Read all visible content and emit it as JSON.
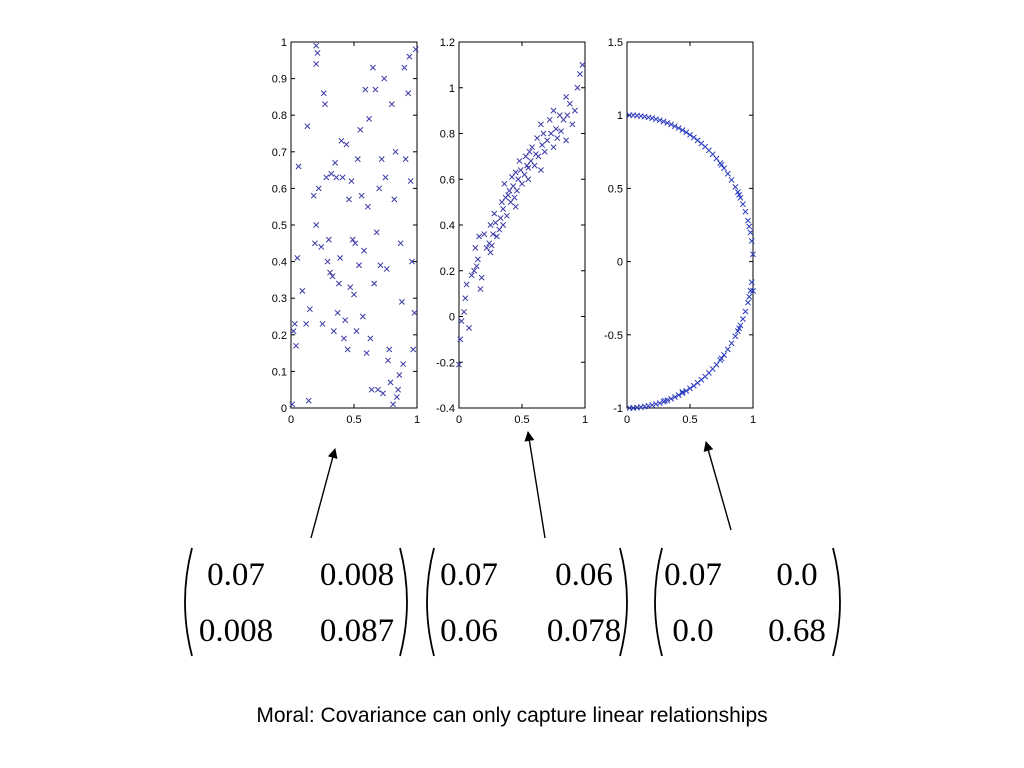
{
  "chart_data": [
    {
      "type": "scatter",
      "marker": "x",
      "color": "#3a3aa8",
      "xlim": [
        0,
        1
      ],
      "ylim": [
        0,
        1
      ],
      "xticks": [
        "0",
        "0.5",
        "1"
      ],
      "yticks": [
        "0",
        "0.1",
        "0.2",
        "0.3",
        "0.4",
        "0.5",
        "0.6",
        "0.7",
        "0.8",
        "0.9",
        "1"
      ],
      "points": [
        [
          0.01,
          0.01
        ],
        [
          0.02,
          0.21
        ],
        [
          0.03,
          0.23
        ],
        [
          0.04,
          0.17
        ],
        [
          0.05,
          0.41
        ],
        [
          0.06,
          0.66
        ],
        [
          0.12,
          0.23
        ],
        [
          0.13,
          0.77
        ],
        [
          0.15,
          0.27
        ],
        [
          0.18,
          0.58
        ],
        [
          0.19,
          0.45
        ],
        [
          0.2,
          0.5
        ],
        [
          0.2,
          0.94
        ],
        [
          0.2,
          0.99
        ],
        [
          0.21,
          0.97
        ],
        [
          0.22,
          0.6
        ],
        [
          0.24,
          0.44
        ],
        [
          0.25,
          0.23
        ],
        [
          0.26,
          0.86
        ],
        [
          0.27,
          0.83
        ],
        [
          0.28,
          0.63
        ],
        [
          0.29,
          0.4
        ],
        [
          0.3,
          0.46
        ],
        [
          0.31,
          0.37
        ],
        [
          0.32,
          0.64
        ],
        [
          0.33,
          0.36
        ],
        [
          0.34,
          0.21
        ],
        [
          0.35,
          0.67
        ],
        [
          0.36,
          0.63
        ],
        [
          0.37,
          0.26
        ],
        [
          0.38,
          0.34
        ],
        [
          0.39,
          0.41
        ],
        [
          0.4,
          0.73
        ],
        [
          0.41,
          0.63
        ],
        [
          0.42,
          0.19
        ],
        [
          0.43,
          0.24
        ],
        [
          0.44,
          0.72
        ],
        [
          0.45,
          0.16
        ],
        [
          0.46,
          0.57
        ],
        [
          0.47,
          0.33
        ],
        [
          0.48,
          0.62
        ],
        [
          0.49,
          0.46
        ],
        [
          0.5,
          0.31
        ],
        [
          0.51,
          0.45
        ],
        [
          0.52,
          0.21
        ],
        [
          0.53,
          0.68
        ],
        [
          0.54,
          0.39
        ],
        [
          0.55,
          0.76
        ],
        [
          0.56,
          0.58
        ],
        [
          0.57,
          0.25
        ],
        [
          0.58,
          0.43
        ],
        [
          0.59,
          0.87
        ],
        [
          0.6,
          0.15
        ],
        [
          0.61,
          0.55
        ],
        [
          0.62,
          0.79
        ],
        [
          0.63,
          0.19
        ],
        [
          0.64,
          0.05
        ],
        [
          0.65,
          0.93
        ],
        [
          0.66,
          0.34
        ],
        [
          0.67,
          0.87
        ],
        [
          0.68,
          0.48
        ],
        [
          0.69,
          0.05
        ],
        [
          0.7,
          0.6
        ],
        [
          0.71,
          0.39
        ],
        [
          0.72,
          0.68
        ],
        [
          0.73,
          0.04
        ],
        [
          0.74,
          0.9
        ],
        [
          0.75,
          0.63
        ],
        [
          0.76,
          0.38
        ],
        [
          0.77,
          0.13
        ],
        [
          0.78,
          0.16
        ],
        [
          0.79,
          0.07
        ],
        [
          0.8,
          0.83
        ],
        [
          0.81,
          0.01
        ],
        [
          0.82,
          0.57
        ],
        [
          0.83,
          0.7
        ],
        [
          0.84,
          0.03
        ],
        [
          0.85,
          0.05
        ],
        [
          0.86,
          0.09
        ],
        [
          0.87,
          0.45
        ],
        [
          0.88,
          0.29
        ],
        [
          0.89,
          0.12
        ],
        [
          0.9,
          0.93
        ],
        [
          0.91,
          0.68
        ],
        [
          0.93,
          0.86
        ],
        [
          0.94,
          0.96
        ],
        [
          0.95,
          0.62
        ],
        [
          0.96,
          0.4
        ],
        [
          0.97,
          0.16
        ],
        [
          0.98,
          0.26
        ],
        [
          0.99,
          0.98
        ],
        [
          0.14,
          0.02
        ],
        [
          0.09,
          0.32
        ]
      ]
    },
    {
      "type": "scatter",
      "marker": "x",
      "color": "#3a3aa8",
      "xlim": [
        0,
        1
      ],
      "ylim": [
        -0.4,
        1.2
      ],
      "xticks": [
        "0",
        "0.5",
        "1"
      ],
      "yticks": [
        "-0.4",
        "-0.2",
        "0",
        "0.2",
        "0.4",
        "0.6",
        "0.8",
        "1",
        "1.2"
      ],
      "points": [
        [
          0.0,
          -0.21
        ],
        [
          0.01,
          -0.1
        ],
        [
          0.02,
          -0.02
        ],
        [
          0.04,
          0.02
        ],
        [
          0.05,
          0.08
        ],
        [
          0.06,
          0.14
        ],
        [
          0.08,
          -0.05
        ],
        [
          0.1,
          0.18
        ],
        [
          0.12,
          0.2
        ],
        [
          0.13,
          0.3
        ],
        [
          0.14,
          0.22
        ],
        [
          0.15,
          0.25
        ],
        [
          0.16,
          0.35
        ],
        [
          0.17,
          0.12
        ],
        [
          0.18,
          0.17
        ],
        [
          0.2,
          0.36
        ],
        [
          0.22,
          0.3
        ],
        [
          0.24,
          0.32
        ],
        [
          0.25,
          0.4
        ],
        [
          0.26,
          0.31
        ],
        [
          0.27,
          0.36
        ],
        [
          0.28,
          0.45
        ],
        [
          0.29,
          0.41
        ],
        [
          0.3,
          0.35
        ],
        [
          0.32,
          0.38
        ],
        [
          0.33,
          0.43
        ],
        [
          0.34,
          0.5
        ],
        [
          0.35,
          0.47
        ],
        [
          0.36,
          0.58
        ],
        [
          0.37,
          0.52
        ],
        [
          0.38,
          0.44
        ],
        [
          0.39,
          0.53
        ],
        [
          0.4,
          0.55
        ],
        [
          0.41,
          0.5
        ],
        [
          0.42,
          0.61
        ],
        [
          0.43,
          0.57
        ],
        [
          0.44,
          0.52
        ],
        [
          0.45,
          0.63
        ],
        [
          0.46,
          0.55
        ],
        [
          0.47,
          0.6
        ],
        [
          0.48,
          0.68
        ],
        [
          0.49,
          0.64
        ],
        [
          0.5,
          0.58
        ],
        [
          0.52,
          0.62
        ],
        [
          0.53,
          0.7
        ],
        [
          0.54,
          0.66
        ],
        [
          0.55,
          0.6
        ],
        [
          0.56,
          0.72
        ],
        [
          0.57,
          0.68
        ],
        [
          0.58,
          0.74
        ],
        [
          0.6,
          0.66
        ],
        [
          0.61,
          0.71
        ],
        [
          0.62,
          0.78
        ],
        [
          0.63,
          0.7
        ],
        [
          0.65,
          0.84
        ],
        [
          0.66,
          0.75
        ],
        [
          0.67,
          0.8
        ],
        [
          0.68,
          0.72
        ],
        [
          0.7,
          0.77
        ],
        [
          0.72,
          0.86
        ],
        [
          0.73,
          0.8
        ],
        [
          0.75,
          0.74
        ],
        [
          0.77,
          0.82
        ],
        [
          0.78,
          0.78
        ],
        [
          0.8,
          0.88
        ],
        [
          0.81,
          0.81
        ],
        [
          0.83,
          0.86
        ],
        [
          0.85,
          0.96
        ],
        [
          0.86,
          0.88
        ],
        [
          0.88,
          0.93
        ],
        [
          0.9,
          0.84
        ],
        [
          0.92,
          0.9
        ],
        [
          0.94,
          1.0
        ],
        [
          0.96,
          1.06
        ],
        [
          0.98,
          1.1
        ],
        [
          0.45,
          0.48
        ],
        [
          0.35,
          0.4
        ],
        [
          0.25,
          0.28
        ],
        [
          0.55,
          0.65
        ],
        [
          0.65,
          0.64
        ],
        [
          0.75,
          0.9
        ],
        [
          0.85,
          0.77
        ]
      ]
    },
    {
      "type": "scatter",
      "marker": "x",
      "color": "#2a3ac0",
      "xlim": [
        0,
        1
      ],
      "ylim": [
        -1,
        1.5
      ],
      "xticks": [
        "0",
        "0.5",
        "1"
      ],
      "yticks": [
        "-1",
        "-0.5",
        "0",
        "0.5",
        "1",
        "1.5"
      ],
      "points": [
        [
          0.02,
          1.0
        ],
        [
          0.05,
          1.0
        ],
        [
          0.08,
          0.997
        ],
        [
          0.11,
          0.994
        ],
        [
          0.14,
          0.99
        ],
        [
          0.17,
          0.985
        ],
        [
          0.2,
          0.98
        ],
        [
          0.23,
          0.973
        ],
        [
          0.26,
          0.966
        ],
        [
          0.29,
          0.957
        ],
        [
          0.32,
          0.947
        ],
        [
          0.35,
          0.937
        ],
        [
          0.38,
          0.925
        ],
        [
          0.41,
          0.912
        ],
        [
          0.44,
          0.898
        ],
        [
          0.47,
          0.883
        ],
        [
          0.5,
          0.866
        ],
        [
          0.53,
          0.848
        ],
        [
          0.56,
          0.828
        ],
        [
          0.59,
          0.807
        ],
        [
          0.62,
          0.785
        ],
        [
          0.65,
          0.76
        ],
        [
          0.68,
          0.733
        ],
        [
          0.71,
          0.704
        ],
        [
          0.74,
          0.673
        ],
        [
          0.77,
          0.638
        ],
        [
          0.8,
          0.6
        ],
        [
          0.83,
          0.558
        ],
        [
          0.86,
          0.51
        ],
        [
          0.88,
          0.475
        ],
        [
          0.9,
          0.436
        ],
        [
          0.92,
          0.392
        ],
        [
          0.94,
          0.341
        ],
        [
          0.96,
          0.28
        ],
        [
          0.98,
          0.199
        ],
        [
          0.99,
          0.141
        ],
        [
          1.0,
          0.05
        ],
        [
          0.97,
          0.24
        ],
        [
          0.89,
          0.456
        ],
        [
          0.75,
          0.661
        ],
        [
          0.02,
          -1.0
        ],
        [
          0.05,
          -1.0
        ],
        [
          0.08,
          -0.997
        ],
        [
          0.11,
          -0.994
        ],
        [
          0.14,
          -0.99
        ],
        [
          0.17,
          -0.985
        ],
        [
          0.2,
          -0.98
        ],
        [
          0.23,
          -0.973
        ],
        [
          0.26,
          -0.966
        ],
        [
          0.29,
          -0.957
        ],
        [
          0.32,
          -0.947
        ],
        [
          0.35,
          -0.937
        ],
        [
          0.38,
          -0.925
        ],
        [
          0.41,
          -0.912
        ],
        [
          0.44,
          -0.898
        ],
        [
          0.47,
          -0.883
        ],
        [
          0.5,
          -0.866
        ],
        [
          0.53,
          -0.848
        ],
        [
          0.56,
          -0.828
        ],
        [
          0.59,
          -0.807
        ],
        [
          0.62,
          -0.785
        ],
        [
          0.65,
          -0.76
        ],
        [
          0.68,
          -0.733
        ],
        [
          0.71,
          -0.704
        ],
        [
          0.74,
          -0.673
        ],
        [
          0.77,
          -0.638
        ],
        [
          0.8,
          -0.6
        ],
        [
          0.83,
          -0.558
        ],
        [
          0.86,
          -0.51
        ],
        [
          0.88,
          -0.475
        ],
        [
          0.9,
          -0.436
        ],
        [
          0.92,
          -0.392
        ],
        [
          0.94,
          -0.341
        ],
        [
          0.96,
          -0.28
        ],
        [
          0.98,
          -0.199
        ],
        [
          0.99,
          -0.141
        ],
        [
          1.0,
          -0.2
        ],
        [
          0.97,
          -0.24
        ],
        [
          0.89,
          -0.456
        ],
        [
          0.75,
          -0.661
        ],
        [
          0.44,
          -0.89
        ],
        [
          0.3,
          -0.95
        ]
      ]
    }
  ],
  "matrices": [
    {
      "rows": [
        [
          "0.07",
          "0.008"
        ],
        [
          "0.008",
          "0.087"
        ]
      ]
    },
    {
      "rows": [
        [
          "0.07",
          "0.06"
        ],
        [
          "0.06",
          "0.078"
        ]
      ]
    },
    {
      "rows": [
        [
          "0.07",
          "0.0"
        ],
        [
          "0.0",
          "0.68"
        ]
      ]
    }
  ],
  "moral_text": "Moral: Covariance can only capture linear relationships"
}
